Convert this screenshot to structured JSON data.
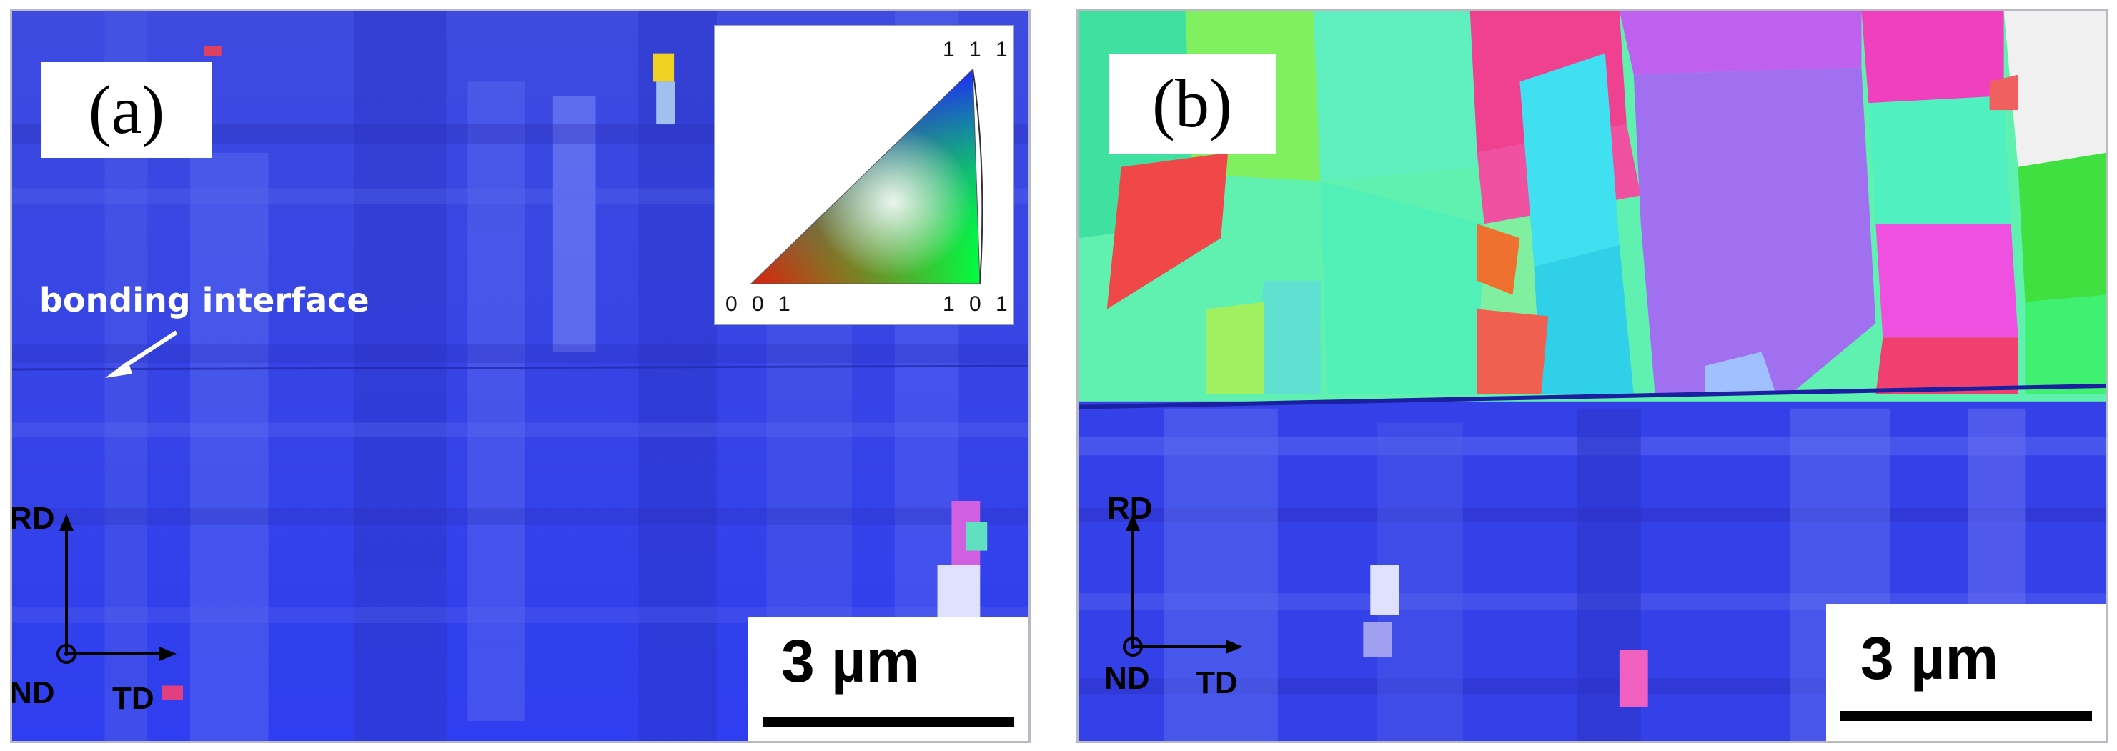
{
  "panel_a": {
    "label": "(a)",
    "interface_label": "bonding interface",
    "legend": {
      "top": "1 1 1",
      "left": "0 0 1",
      "right": "1 0 1"
    },
    "axes": {
      "rd": "RD",
      "nd": "ND",
      "td": "TD"
    },
    "scale": "3 µm"
  },
  "panel_b": {
    "label": "(b)",
    "axes": {
      "rd": "RD",
      "nd": "ND",
      "td": "TD"
    },
    "scale": "3 µm"
  }
}
